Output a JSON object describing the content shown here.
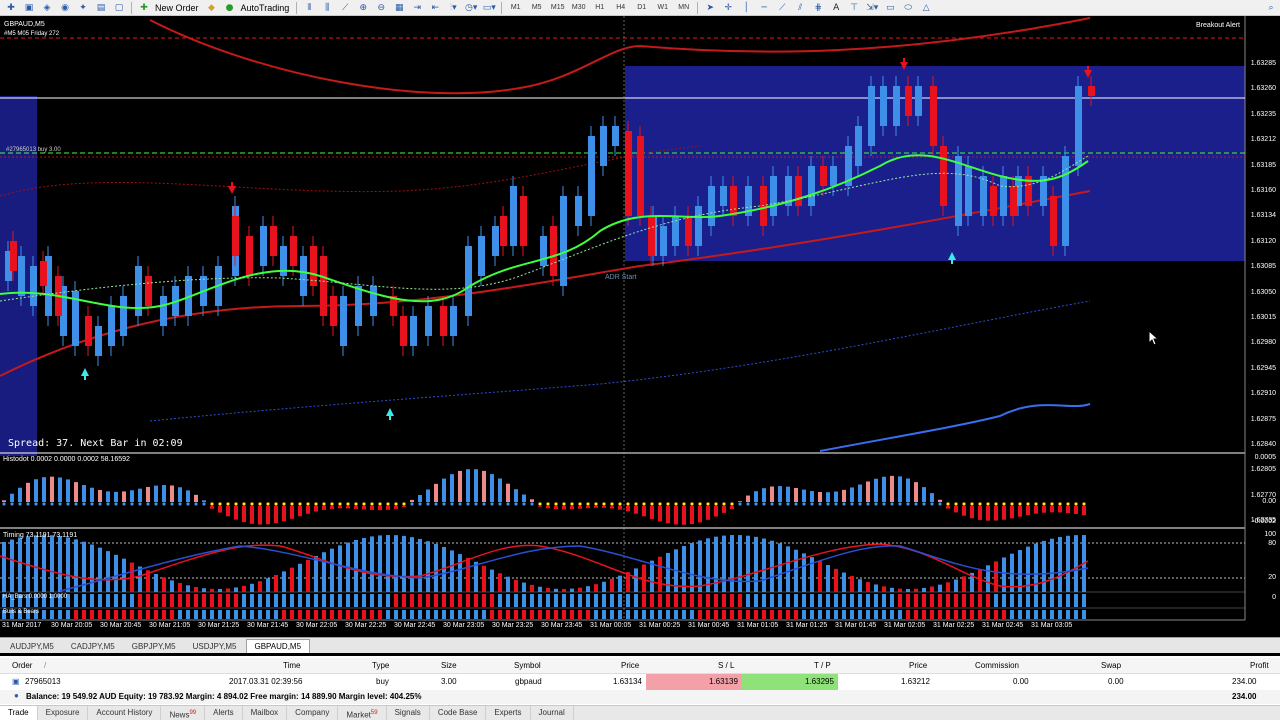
{
  "toolbar": {
    "new_order_label": "New Order",
    "autotrading_label": "AutoTrading",
    "timeframes": [
      "M1",
      "M5",
      "M15",
      "M30",
      "H1",
      "H4",
      "D1",
      "W1",
      "MN"
    ]
  },
  "chart_header": {
    "symbol": "GBPAUD,M5",
    "line2": "#M5 M05 Friday 272",
    "breakout_alert": "Breakout Alert",
    "order_label": "#27965013 buy 3.00",
    "adr_start": "ADR Start",
    "spread_text": "Spread: 37. Next Bar in 02:09"
  },
  "price_axis": [
    "1.63285",
    "1.63260",
    "1.63235",
    "1.63212",
    "1.63185",
    "1.63160",
    "1.63134",
    "1.63120",
    "1.63085",
    "1.63050",
    "1.63015",
    "1.62980",
    "1.62945",
    "1.62910",
    "1.62875",
    "1.62840",
    "1.62805",
    "1.62770",
    "1.62735"
  ],
  "histo_indicator": {
    "label": "Histodot 0.0002 0.0000 0.0002 58.16592",
    "axis": [
      "0.0005",
      "0.00",
      "-0.0002"
    ]
  },
  "timing_indicator": {
    "label": "Timing 73.1191 73.1191",
    "axis": [
      "100",
      "80",
      "20",
      "0"
    ]
  },
  "ha_bars": {
    "label": "HA_Bars 0.0000 1.0000"
  },
  "bulls_bears": {
    "label": "Bulls & Bears"
  },
  "time_axis": [
    "31 Mar 2017",
    "30 Mar 20:05",
    "30 Mar 20:45",
    "30 Mar 21:05",
    "30 Mar 21:25",
    "30 Mar 21:45",
    "30 Mar 22:05",
    "30 Mar 22:25",
    "30 Mar 22:45",
    "30 Mar 23:05",
    "30 Mar 23:25",
    "30 Mar 23:45",
    "31 Mar 00:05",
    "31 Mar 00:25",
    "31 Mar 00:45",
    "31 Mar 01:05",
    "31 Mar 01:25",
    "31 Mar 01:45",
    "31 Mar 02:05",
    "31 Mar 02:25",
    "31 Mar 02:45",
    "31 Mar 03:05"
  ],
  "symbol_tabs": [
    "AUDJPY,M5",
    "CADJPY,M5",
    "GBPJPY,M5",
    "USDJPY,M5",
    "GBPAUD,M5"
  ],
  "active_symbol_tab": 4,
  "terminal": {
    "headers": {
      "order": "Order",
      "time": "Time",
      "type": "Type",
      "size": "Size",
      "symbol": "Symbol",
      "price": "Price",
      "sl": "S / L",
      "tp": "T / P",
      "price2": "Price",
      "commission": "Commission",
      "swap": "Swap",
      "profit": "Profit"
    },
    "row": {
      "order": "27965013",
      "time": "2017.03.31 02:39:56",
      "type": "buy",
      "size": "3.00",
      "symbol": "gbpaud",
      "price": "1.63134",
      "sl": "1.63139",
      "tp": "1.63295",
      "price2": "1.63212",
      "commission": "0.00",
      "swap": "0.00",
      "profit": "234.00"
    },
    "balance": "Balance: 19 549.92 AUD  Equity: 19 783.92  Margin: 4 894.02  Free margin: 14 889.90  Margin level: 404.25%",
    "balance_profit": "234.00",
    "tabs": [
      "Trade",
      "Exposure",
      "Account History",
      "News",
      "Alerts",
      "Mailbox",
      "Company",
      "Market",
      "Signals",
      "Code Base",
      "Experts",
      "Journal"
    ],
    "news_badge": "99",
    "market_badge": "59",
    "active_tab": 0
  },
  "colors": {
    "bull": "#3d8fe8",
    "bear": "#e8121f",
    "range_box": "#1a1f8c",
    "ma_green": "#3dff3d",
    "ma_red": "#e8121f",
    "sl_bg": "#f4a0a8",
    "tp_bg": "#8fe27a"
  }
}
